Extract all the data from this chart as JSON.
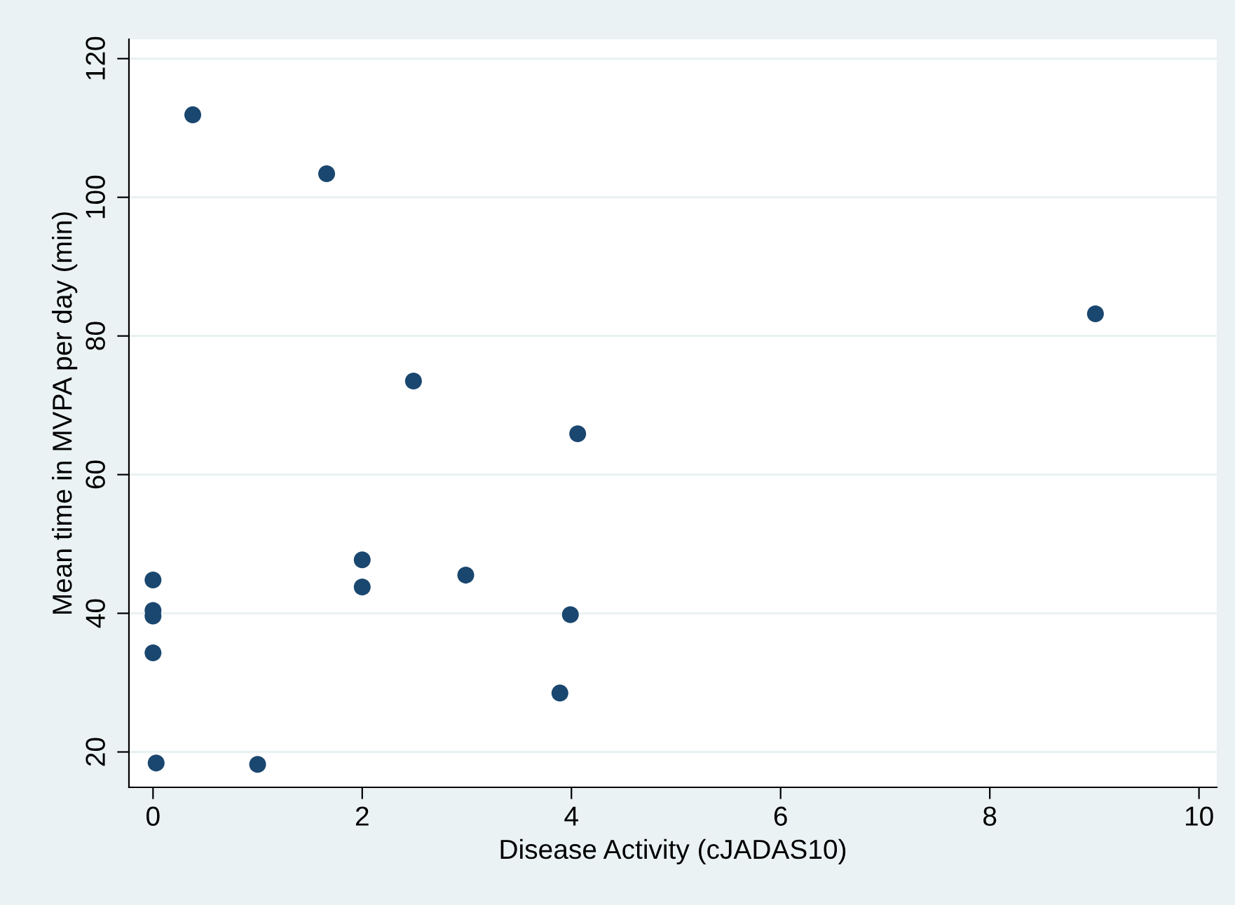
{
  "chart_data": {
    "type": "scatter",
    "xlabel": "Disease Activity (cJADAS10)",
    "ylabel": "Mean time in MVPA per day (min)",
    "x": [
      0.03,
      1.0,
      0,
      0,
      0,
      0,
      0.38,
      1.66,
      2.0,
      2.0,
      2.49,
      2.99,
      3.89,
      3.99,
      4.06,
      9.01
    ],
    "values": [
      18.4,
      18.2,
      34.3,
      39.6,
      40.4,
      44.8,
      111.9,
      103.4,
      47.7,
      43.8,
      73.5,
      45.5,
      28.5,
      39.8,
      65.9,
      83.2
    ],
    "color": "#1a476f",
    "marker": "circle",
    "xlim": [
      -0.23,
      10.17
    ],
    "ylim": [
      14.9,
      122.8
    ],
    "xticks": [
      0,
      2,
      4,
      6,
      8,
      10
    ],
    "yticks": [
      20,
      40,
      60,
      80,
      100,
      120
    ],
    "grid": "y",
    "legend": false
  }
}
